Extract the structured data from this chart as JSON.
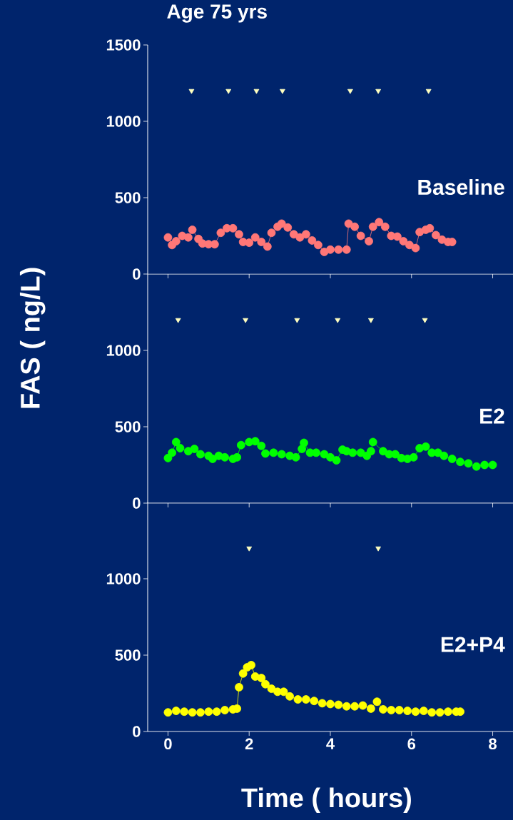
{
  "chart_data": [
    {
      "type": "line",
      "title": "Age 75 yrs",
      "marker": "circle",
      "xlim": [
        -0.5,
        8.5
      ],
      "ylim": [
        0,
        1500
      ],
      "xticks": [
        0,
        2,
        4,
        6,
        8
      ],
      "yticks": [
        0,
        500,
        1000,
        1500
      ],
      "tick_labels": "y",
      "series": [
        {
          "name": "Baseline",
          "color": "#ff7777",
          "x": [
            0,
            0.1,
            0.2,
            0.35,
            0.5,
            0.6,
            0.75,
            0.85,
            1.0,
            1.15,
            1.3,
            1.45,
            1.6,
            1.75,
            1.85,
            2.0,
            2.15,
            2.3,
            2.45,
            2.55,
            2.7,
            2.8,
            2.95,
            3.1,
            3.25,
            3.4,
            3.55,
            3.7,
            3.85,
            4.0,
            4.2,
            4.4,
            4.45,
            4.6,
            4.75,
            4.95,
            5.05,
            5.2,
            5.35,
            5.5,
            5.65,
            5.8,
            5.95,
            6.1,
            6.2,
            6.35,
            6.45,
            6.6,
            6.75,
            6.9,
            7.0
          ],
          "values": [
            240,
            190,
            215,
            250,
            240,
            290,
            230,
            200,
            195,
            195,
            270,
            300,
            300,
            260,
            210,
            205,
            240,
            210,
            180,
            270,
            310,
            330,
            305,
            260,
            240,
            260,
            220,
            190,
            145,
            160,
            160,
            160,
            330,
            310,
            250,
            215,
            310,
            340,
            310,
            250,
            245,
            215,
            190,
            170,
            275,
            290,
            300,
            255,
            225,
            210,
            210
          ]
        },
        {
          "type": "scatter",
          "marker": "triangle",
          "color": "#ffffc0",
          "x": [
            0.58,
            1.49,
            2.18,
            2.82,
            4.49,
            5.18,
            6.42
          ],
          "values": [
            1200,
            1200,
            1200,
            1200,
            1200,
            1200,
            1200
          ]
        }
      ]
    },
    {
      "type": "line",
      "ylabel": "FAS ( ng/L)",
      "marker": "circle",
      "xlim": [
        -0.5,
        8.5
      ],
      "ylim": [
        0,
        1500
      ],
      "xticks": [
        0,
        2,
        4,
        6,
        8
      ],
      "yticks": [
        0,
        500,
        1000
      ],
      "tick_labels": "y",
      "series": [
        {
          "name": "E2",
          "color": "#00ff00",
          "x": [
            0,
            0.1,
            0.2,
            0.3,
            0.5,
            0.65,
            0.8,
            1.0,
            1.1,
            1.25,
            1.4,
            1.6,
            1.7,
            1.8,
            2.0,
            2.15,
            2.3,
            2.4,
            2.6,
            2.8,
            3.0,
            3.15,
            3.3,
            3.35,
            3.5,
            3.65,
            3.85,
            4.0,
            4.15,
            4.3,
            4.4,
            4.55,
            4.75,
            4.9,
            5.0,
            5.05,
            5.3,
            5.45,
            5.6,
            5.75,
            5.9,
            6.05,
            6.2,
            6.35,
            6.5,
            6.65,
            6.8,
            7.0,
            7.2,
            7.4,
            7.6,
            7.8,
            8.0
          ],
          "values": [
            295,
            330,
            400,
            360,
            340,
            355,
            320,
            310,
            290,
            310,
            300,
            290,
            300,
            380,
            400,
            405,
            375,
            325,
            330,
            320,
            310,
            300,
            355,
            395,
            330,
            330,
            320,
            300,
            280,
            350,
            340,
            330,
            330,
            310,
            340,
            400,
            340,
            320,
            320,
            295,
            290,
            300,
            360,
            370,
            330,
            330,
            310,
            290,
            270,
            260,
            240,
            250,
            250
          ]
        },
        {
          "type": "scatter",
          "marker": "triangle",
          "color": "#ffffc0",
          "x": [
            0.25,
            1.91,
            3.18,
            4.18,
            5.0,
            6.33
          ],
          "values": [
            1200,
            1200,
            1200,
            1200,
            1200,
            1200
          ]
        }
      ]
    },
    {
      "type": "line",
      "xlabel": "Time ( hours)",
      "marker": "circle",
      "xlim": [
        -0.5,
        8.5
      ],
      "ylim": [
        0,
        1500
      ],
      "xticks": [
        0,
        2,
        4,
        6,
        8
      ],
      "yticks": [
        0,
        500,
        1000
      ],
      "series": [
        {
          "name": "E2+P4",
          "color": "#ffff00",
          "x": [
            0,
            0.2,
            0.4,
            0.6,
            0.8,
            1.0,
            1.2,
            1.4,
            1.6,
            1.7,
            1.75,
            1.85,
            1.95,
            2.05,
            2.15,
            2.3,
            2.4,
            2.55,
            2.7,
            2.85,
            3.0,
            3.2,
            3.4,
            3.6,
            3.8,
            4.0,
            4.2,
            4.4,
            4.6,
            4.8,
            5.0,
            5.15,
            5.3,
            5.5,
            5.7,
            5.9,
            6.1,
            6.3,
            6.5,
            6.7,
            6.9,
            7.1,
            7.2
          ],
          "values": [
            125,
            135,
            130,
            125,
            125,
            130,
            130,
            140,
            145,
            150,
            290,
            380,
            420,
            435,
            360,
            350,
            310,
            280,
            260,
            260,
            230,
            210,
            210,
            200,
            185,
            180,
            175,
            165,
            165,
            170,
            150,
            195,
            145,
            140,
            140,
            135,
            130,
            135,
            125,
            125,
            130,
            130,
            130
          ]
        },
        {
          "type": "scatter",
          "marker": "triangle",
          "color": "#ffffc0",
          "x": [
            2.0,
            5.18
          ],
          "values": [
            1200,
            1200
          ]
        }
      ]
    }
  ]
}
